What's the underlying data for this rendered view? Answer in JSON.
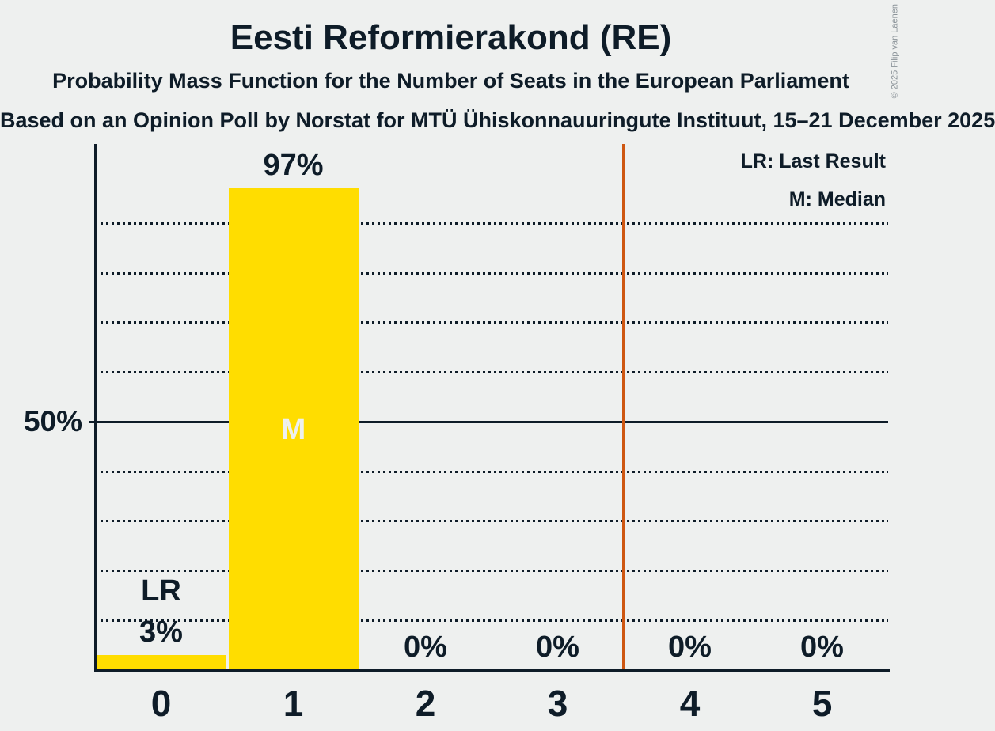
{
  "header": {
    "title": "Eesti Reformierakond (RE)",
    "subtitle1": "Probability Mass Function for the Number of Seats in the European Parliament",
    "subtitle2": "Based on an Opinion Poll by Norstat for MTÜ Ühiskonnauuringute Instituut, 15–21 December 2025",
    "copyright": "© 2025 Filip van Laenen"
  },
  "legend": {
    "last_result": "LR: Last Result",
    "median": "M: Median"
  },
  "chart_data": {
    "type": "bar",
    "title": "Eesti Reformierakond (RE)",
    "categories": [
      "0",
      "1",
      "2",
      "3",
      "4",
      "5"
    ],
    "values": [
      3,
      97,
      0,
      0,
      0,
      0
    ],
    "bar_labels": [
      "3%",
      "97%",
      "0%",
      "0%",
      "0%",
      "0%"
    ],
    "xlabel": "",
    "ylabel": "",
    "ylim": [
      0,
      106
    ],
    "y_axis": {
      "tick_pct": 50,
      "tick_label": "50%"
    },
    "gridlines": {
      "step_pct": 10,
      "from_pct": 10,
      "to_pct": 90,
      "style": "dotted",
      "solid_at_pct": 50
    },
    "annotations": {
      "last_result_index": 0,
      "last_result_label": "LR",
      "median_index": 1,
      "median_label": "M"
    },
    "threshold_line": {
      "x_value": 3.5
    },
    "legend_position": "top-right",
    "colors": {
      "background": "#eef0ef",
      "bar": "#ffdd00",
      "text": "#0e1c28",
      "median_letter": "#eef0ef",
      "threshold_line": "#ce5712",
      "copyright": "#8b9399"
    }
  }
}
